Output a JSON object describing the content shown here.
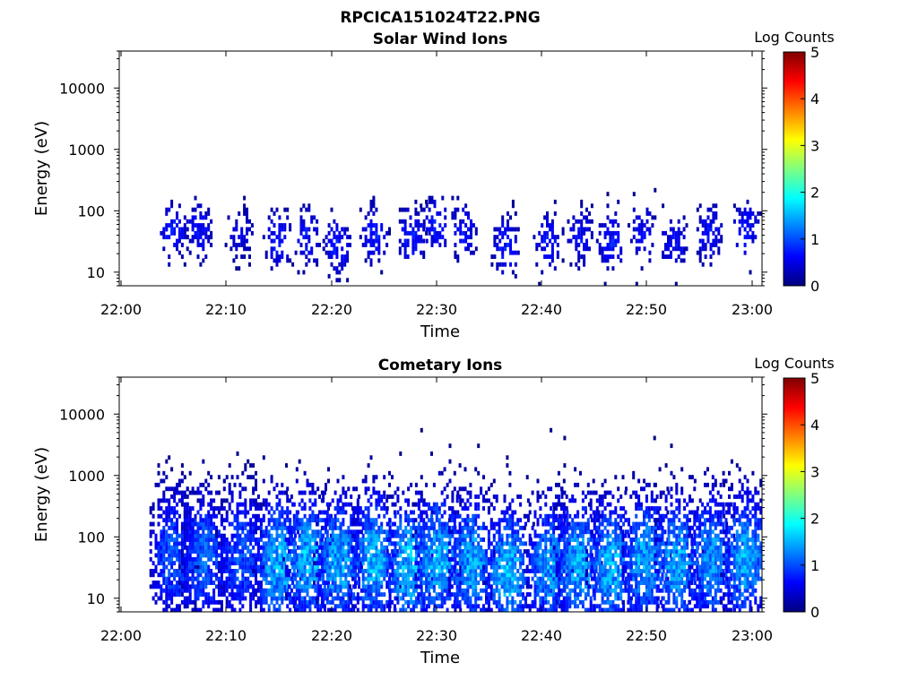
{
  "figure_title": "RPCICA151024T22.PNG",
  "colorbar_ticks": [
    "0",
    "1",
    "2",
    "3",
    "4",
    "5"
  ],
  "colors": {
    "colormap": "jet",
    "colormap_stops": [
      "#00007f",
      "#0000ff",
      "#007fff",
      "#00ffff",
      "#7fff7f",
      "#ffff00",
      "#ff7f00",
      "#ff0000",
      "#7f0000"
    ]
  },
  "chart_data": [
    {
      "type": "heatmap",
      "title": "Solar Wind Ions",
      "xlabel": "Time",
      "ylabel": "Energy (eV)",
      "yscale": "log",
      "xlim": [
        "22:00",
        "23:00"
      ],
      "ylim": [
        6,
        40000
      ],
      "x_ticks": [
        "22:00",
        "22:10",
        "22:20",
        "22:30",
        "22:40",
        "22:50",
        "23:00"
      ],
      "y_ticks": [
        "10",
        "100",
        "1000",
        "10000"
      ],
      "colorbar": {
        "label": "Log Counts",
        "range": [
          0,
          5
        ]
      },
      "grid": false,
      "bursts": [
        {
          "t_min": 4.8,
          "center_ev": 45,
          "peak": 0.9
        },
        {
          "t_min": 7.3,
          "center_ev": 45,
          "peak": 0.8
        },
        {
          "t_min": 11.2,
          "center_ev": 40,
          "peak": 0.6
        },
        {
          "t_min": 14.8,
          "center_ev": 30,
          "peak": 0.9
        },
        {
          "t_min": 17.6,
          "center_ev": 35,
          "peak": 0.9
        },
        {
          "t_min": 20.5,
          "center_ev": 25,
          "peak": 0.9
        },
        {
          "t_min": 24.0,
          "center_ev": 40,
          "peak": 0.9
        },
        {
          "t_min": 27.5,
          "center_ev": 35,
          "peak": 0.9
        },
        {
          "t_min": 29.8,
          "center_ev": 55,
          "peak": 0.9
        },
        {
          "t_min": 32.5,
          "center_ev": 45,
          "peak": 0.8
        },
        {
          "t_min": 36.5,
          "center_ev": 25,
          "peak": 0.9
        },
        {
          "t_min": 40.5,
          "center_ev": 30,
          "peak": 0.9
        },
        {
          "t_min": 43.5,
          "center_ev": 35,
          "peak": 0.8
        },
        {
          "t_min": 46.5,
          "center_ev": 30,
          "peak": 0.9
        },
        {
          "t_min": 49.5,
          "center_ev": 40,
          "peak": 0.8
        },
        {
          "t_min": 52.5,
          "center_ev": 30,
          "peak": 0.8
        },
        {
          "t_min": 55.8,
          "center_ev": 40,
          "peak": 0.8
        },
        {
          "t_min": 59.3,
          "center_ev": 45,
          "peak": 0.9
        }
      ]
    },
    {
      "type": "heatmap",
      "title": "Cometary Ions",
      "xlabel": "Time",
      "ylabel": "Energy (eV)",
      "yscale": "log",
      "xlim": [
        "22:00",
        "23:00"
      ],
      "ylim": [
        6,
        40000
      ],
      "x_ticks": [
        "22:00",
        "22:10",
        "22:20",
        "22:30",
        "22:40",
        "22:50",
        "23:00"
      ],
      "y_ticks": [
        "10",
        "100",
        "1000",
        "10000"
      ],
      "colorbar": {
        "label": "Log Counts",
        "range": [
          0,
          5
        ]
      },
      "grid": false,
      "bursts": [
        {
          "t_min": 4.8,
          "center_ev": 45,
          "peak": 1.3
        },
        {
          "t_min": 7.8,
          "center_ev": 45,
          "peak": 1.4
        },
        {
          "t_min": 11.3,
          "center_ev": 45,
          "peak": 1.3
        },
        {
          "t_min": 14.8,
          "center_ev": 35,
          "peak": 1.9
        },
        {
          "t_min": 17.7,
          "center_ev": 40,
          "peak": 1.9
        },
        {
          "t_min": 20.6,
          "center_ev": 35,
          "peak": 1.8
        },
        {
          "t_min": 24.0,
          "center_ev": 40,
          "peak": 1.9
        },
        {
          "t_min": 27.3,
          "center_ev": 30,
          "peak": 2.0
        },
        {
          "t_min": 30.0,
          "center_ev": 40,
          "peak": 1.9
        },
        {
          "t_min": 33.2,
          "center_ev": 35,
          "peak": 1.8
        },
        {
          "t_min": 36.7,
          "center_ev": 25,
          "peak": 1.9
        },
        {
          "t_min": 40.6,
          "center_ev": 30,
          "peak": 1.7
        },
        {
          "t_min": 43.4,
          "center_ev": 35,
          "peak": 1.8
        },
        {
          "t_min": 46.5,
          "center_ev": 30,
          "peak": 1.9
        },
        {
          "t_min": 49.7,
          "center_ev": 40,
          "peak": 1.8
        },
        {
          "t_min": 52.8,
          "center_ev": 35,
          "peak": 1.8
        },
        {
          "t_min": 56.0,
          "center_ev": 40,
          "peak": 1.7
        },
        {
          "t_min": 59.3,
          "center_ev": 40,
          "peak": 1.8
        }
      ]
    }
  ]
}
